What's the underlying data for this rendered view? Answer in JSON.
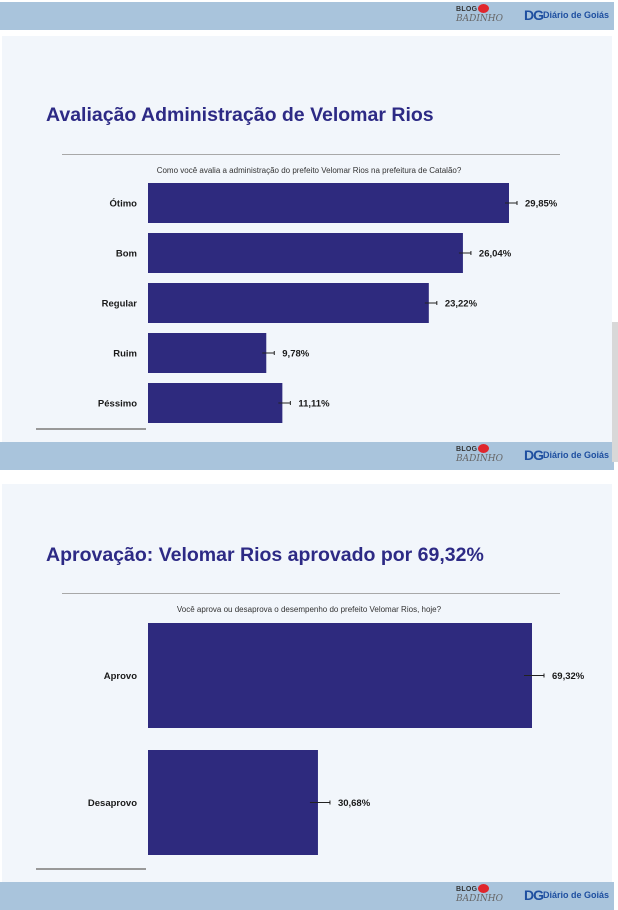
{
  "brand": {
    "blog_line1": "BLOG",
    "blog_line2": "BADINHO",
    "blog_badge": "DO",
    "dg_mark": "DG",
    "dg_name": "Diário de Goiás"
  },
  "panels": [
    {
      "title": "Avaliação Administração de Velomar Rios",
      "question": "Como você avalia a administração do prefeito Velomar Rios na prefeitura de Catalão?"
    },
    {
      "title": "Aprovação: Velomar Rios aprovado por 69,32%",
      "question": "Você aprova ou desaprova o desempenho do prefeito Velomar Rios, hoje?"
    }
  ],
  "colors": {
    "bar": "#2e2a7e",
    "title": "#2d2a85",
    "strip": "#a9c4dc"
  },
  "chart_data": [
    {
      "type": "bar",
      "orientation": "horizontal",
      "categories": [
        "Ótimo",
        "Bom",
        "Regular",
        "Ruim",
        "Péssimo"
      ],
      "values": [
        29.85,
        26.04,
        23.22,
        9.78,
        11.11
      ],
      "value_labels": [
        "29,85%",
        "26,04%",
        "23,22%",
        "9,78%",
        "11,11%"
      ],
      "error_bars": true
    },
    {
      "type": "bar",
      "orientation": "horizontal",
      "categories": [
        "Aprovo",
        "Desaprovo"
      ],
      "values": [
        69.32,
        30.68
      ],
      "value_labels": [
        "69,32%",
        "30,68%"
      ],
      "error_bars": true
    }
  ]
}
